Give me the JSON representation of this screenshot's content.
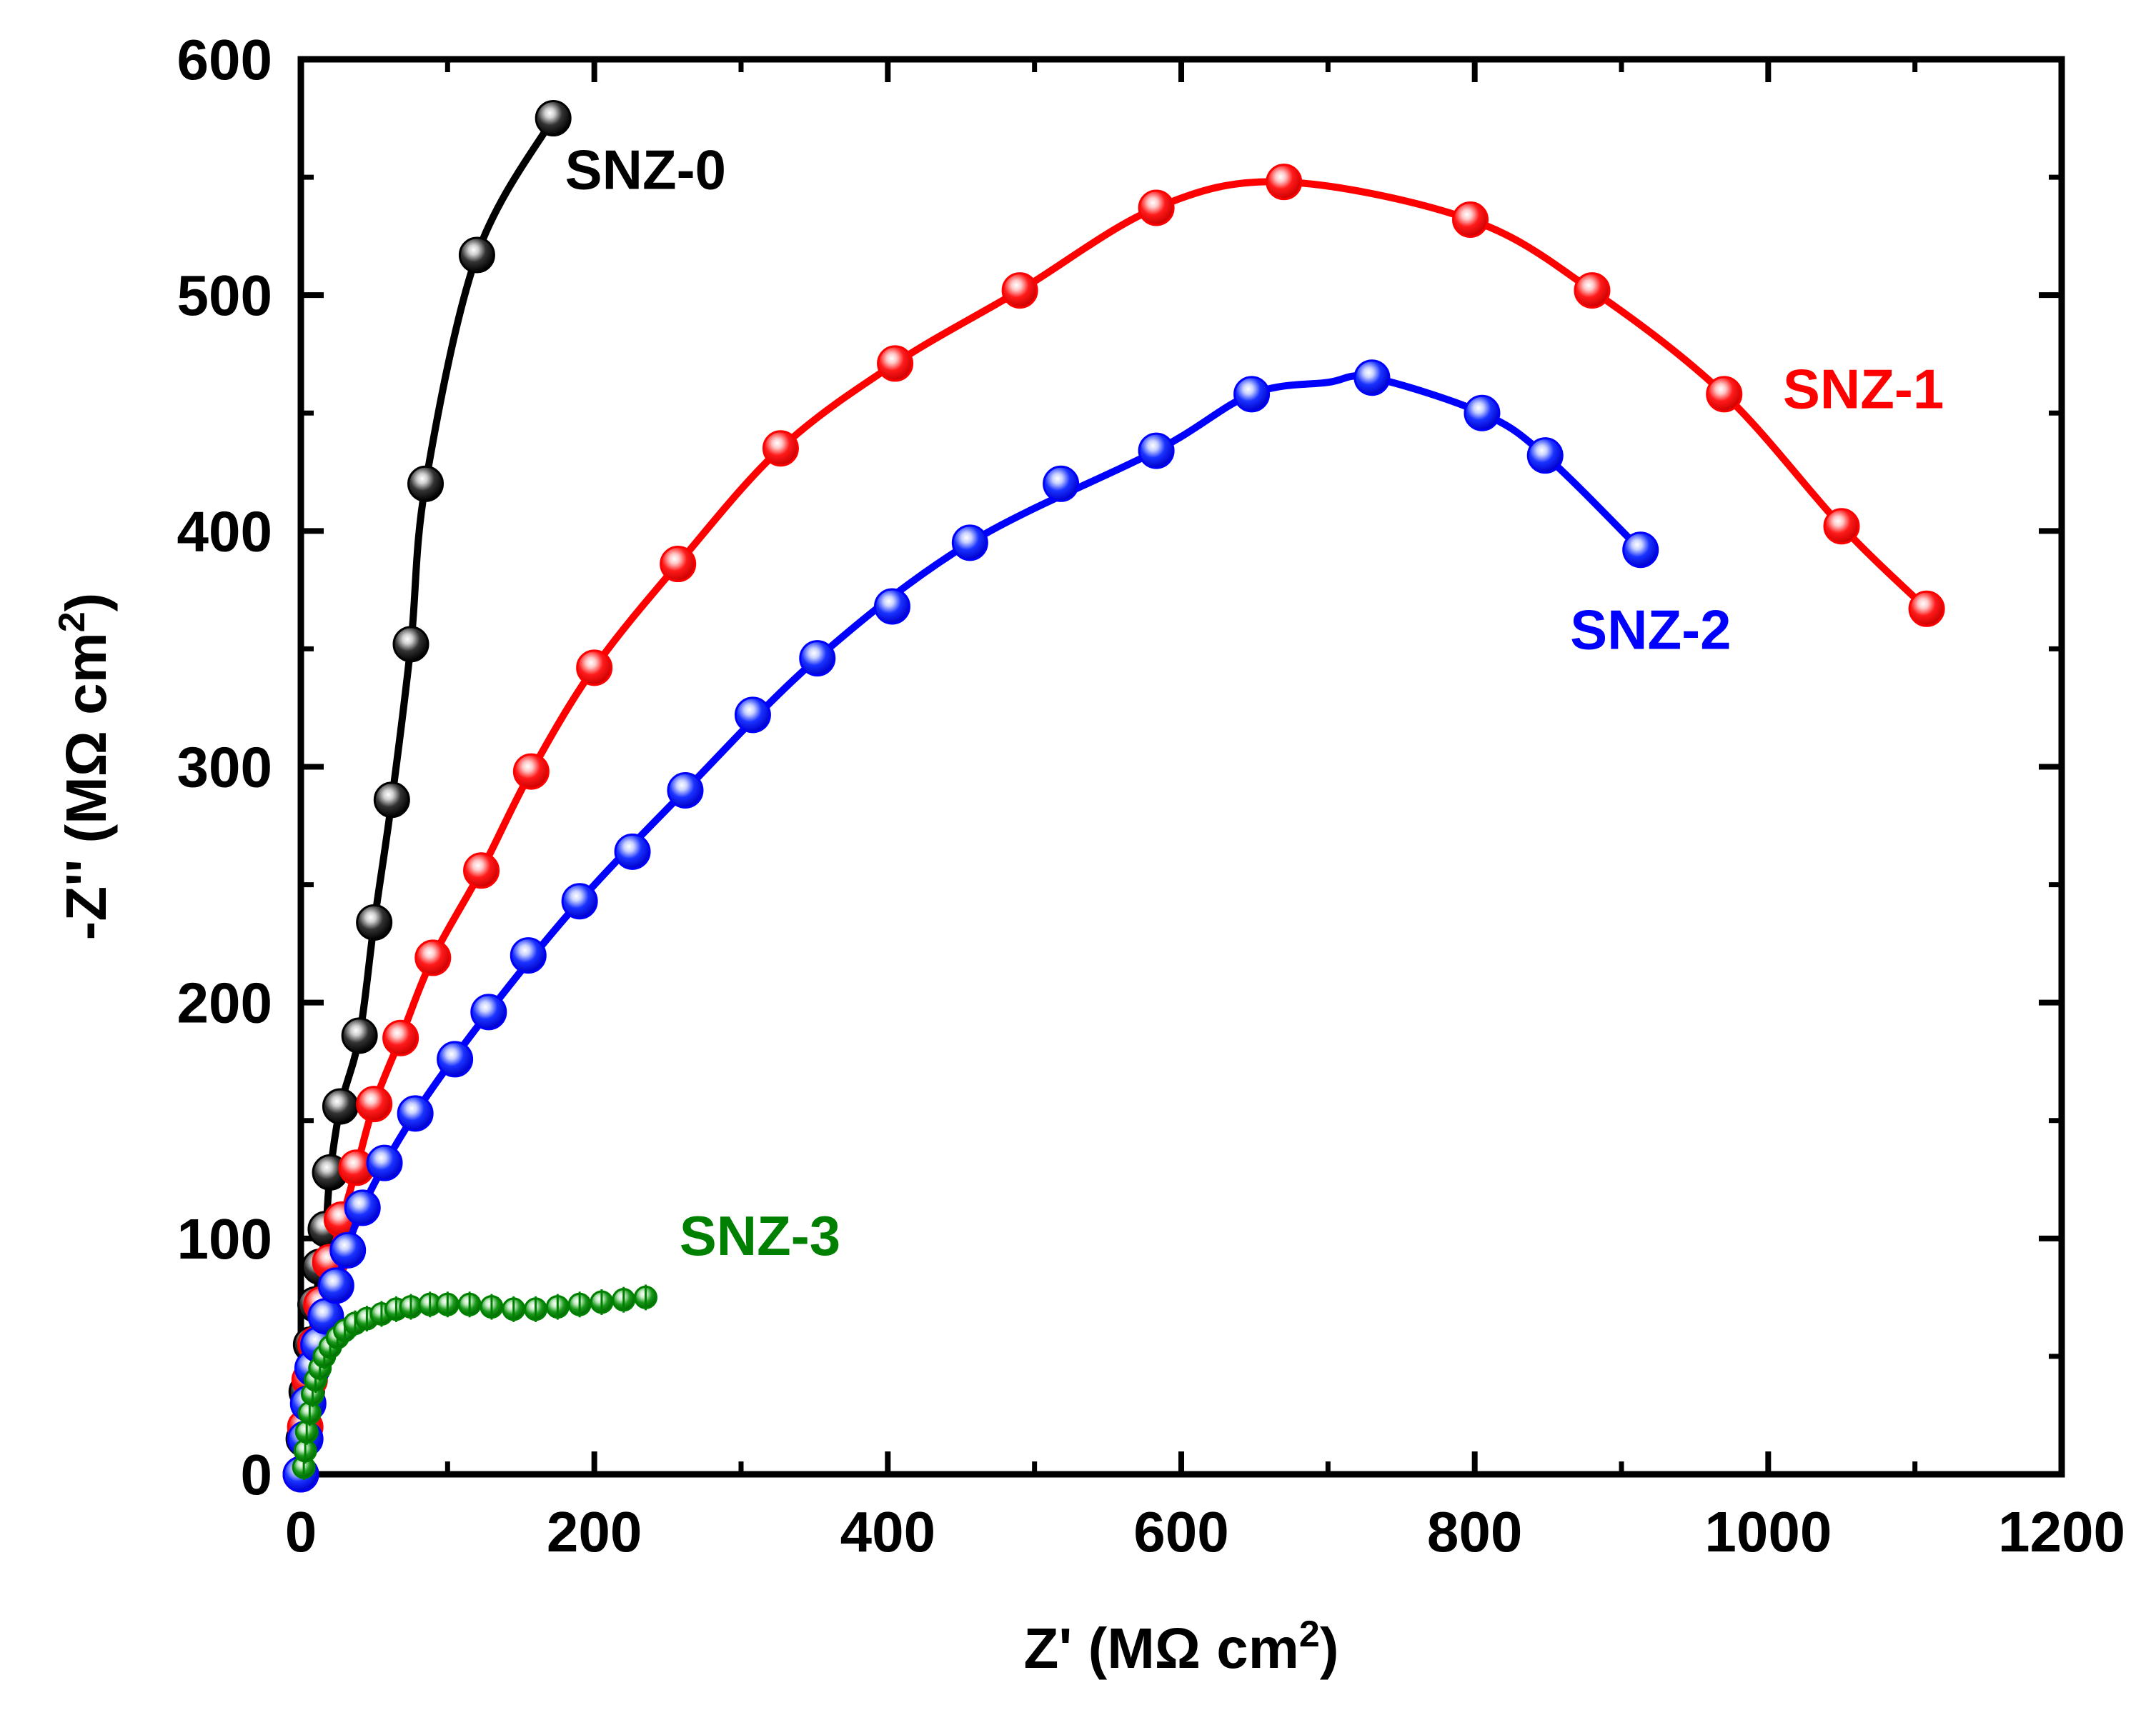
{
  "chart_data": {
    "type": "scatter",
    "title": "",
    "xlabel": {
      "prefix": "Z' (",
      "unit": "MΩ cm",
      "sup": "2",
      "suffix": ")"
    },
    "ylabel": {
      "prefix": "-Z'' (",
      "unit": "MΩ cm",
      "sup": "2",
      "suffix": ")"
    },
    "xlim": [
      0,
      1200
    ],
    "ylim": [
      0,
      600
    ],
    "xticks": [
      0,
      200,
      400,
      600,
      800,
      1000,
      1200
    ],
    "yticks": [
      0,
      100,
      200,
      300,
      400,
      500,
      600
    ],
    "grid": false,
    "legend": "inline labels",
    "series": [
      {
        "name": "SNZ-0",
        "color": "#000000",
        "marker": "sphere",
        "x": [
          0,
          2,
          4,
          7,
          10,
          13,
          17,
          20,
          27,
          40,
          50,
          62,
          75,
          85,
          120,
          172
        ],
        "y": [
          0,
          15,
          35,
          55,
          72,
          88,
          104,
          128,
          156,
          186,
          234,
          286,
          352,
          420,
          517,
          575
        ]
      },
      {
        "name": "SNZ-1",
        "color": "#ff0000",
        "marker": "sphere",
        "x": [
          0,
          3,
          6,
          10,
          14,
          20,
          28,
          38,
          50,
          68,
          90,
          123,
          157,
          200,
          257,
          327,
          405,
          490,
          583,
          670,
          797,
          880,
          970,
          1050,
          1108
        ],
        "y": [
          0,
          20,
          40,
          55,
          72,
          90,
          108,
          130,
          157,
          185,
          219,
          256,
          298,
          342,
          386,
          435,
          471,
          502,
          537,
          548,
          532,
          502,
          458,
          402,
          367
        ]
      },
      {
        "name": "SNZ-2",
        "color": "#0000ff",
        "marker": "sphere",
        "x": [
          0,
          3,
          5,
          8,
          12,
          17,
          24,
          32,
          42,
          57,
          78,
          105,
          128,
          155,
          190,
          226,
          262,
          308,
          352,
          403,
          456,
          518,
          583,
          648,
          730,
          805,
          848,
          913
        ],
        "y": [
          0,
          15,
          30,
          45,
          55,
          67,
          80,
          95,
          113,
          132,
          153,
          176,
          196,
          220,
          243,
          264,
          290,
          322,
          346,
          368,
          395,
          420,
          434,
          458,
          465,
          450,
          432,
          392
        ],
        "fit_x": [
          0,
          5,
          12,
          24,
          42,
          78,
          128,
          190,
          262,
          352,
          456,
          583,
          648,
          700,
          730,
          805,
          848,
          913
        ],
        "fit_y": [
          0,
          30,
          55,
          80,
          113,
          153,
          196,
          243,
          290,
          346,
          395,
          434,
          458,
          463,
          465,
          450,
          432,
          392
        ]
      },
      {
        "name": "SNZ-3",
        "color": "#008000",
        "marker": "sphere-small",
        "x": [
          2,
          3,
          4,
          6,
          8,
          10,
          13,
          16,
          20,
          25,
          30,
          37,
          45,
          55,
          65,
          75,
          88,
          100,
          115,
          130,
          145,
          160,
          175,
          190,
          205,
          220,
          235
        ],
        "y": [
          3,
          10,
          18,
          26,
          34,
          40,
          45,
          50,
          54,
          58,
          61,
          64,
          66,
          68,
          70,
          71,
          72,
          72,
          72,
          71,
          70,
          70,
          71,
          72,
          73,
          74,
          75
        ]
      }
    ],
    "labels": [
      {
        "text": "SNZ-0",
        "x": 180,
        "y": 545,
        "color": "#000000"
      },
      {
        "text": "SNZ-1",
        "x": 1010,
        "y": 452,
        "color": "#ff0000"
      },
      {
        "text": "SNZ-2",
        "x": 865,
        "y": 350,
        "color": "#0000ff"
      },
      {
        "text": "SNZ-3",
        "x": 258,
        "y": 93,
        "color": "#008000"
      }
    ]
  }
}
